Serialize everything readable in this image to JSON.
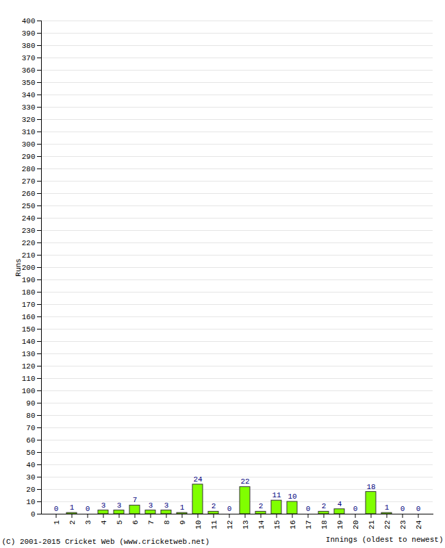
{
  "chart_data": {
    "type": "bar",
    "categories": [
      "1",
      "2",
      "3",
      "4",
      "5",
      "6",
      "7",
      "8",
      "9",
      "10",
      "11",
      "12",
      "13",
      "14",
      "15",
      "16",
      "17",
      "18",
      "19",
      "20",
      "21",
      "22",
      "23",
      "24"
    ],
    "values": [
      0,
      1,
      0,
      3,
      3,
      7,
      3,
      3,
      1,
      24,
      2,
      0,
      22,
      2,
      11,
      10,
      0,
      2,
      4,
      0,
      18,
      1,
      0,
      0
    ],
    "color": "#80ff00",
    "x_label": "Innings (oldest to newest)",
    "y_label": "Runs",
    "annotations": [
      "(C) 2001-2015 Cricket Web (www.cricketweb.net)"
    ],
    "ylim": [
      0,
      400
    ],
    "yticks": [
      0,
      10,
      20,
      30,
      40,
      50,
      60,
      70,
      80,
      90,
      100,
      110,
      120,
      130,
      140,
      150,
      160,
      170,
      180,
      190,
      200,
      210,
      220,
      230,
      240,
      250,
      260,
      270,
      280,
      290,
      300,
      310,
      320,
      330,
      340,
      350,
      360,
      370,
      380,
      390,
      400
    ],
    "grid": true,
    "data_labels": true
  }
}
